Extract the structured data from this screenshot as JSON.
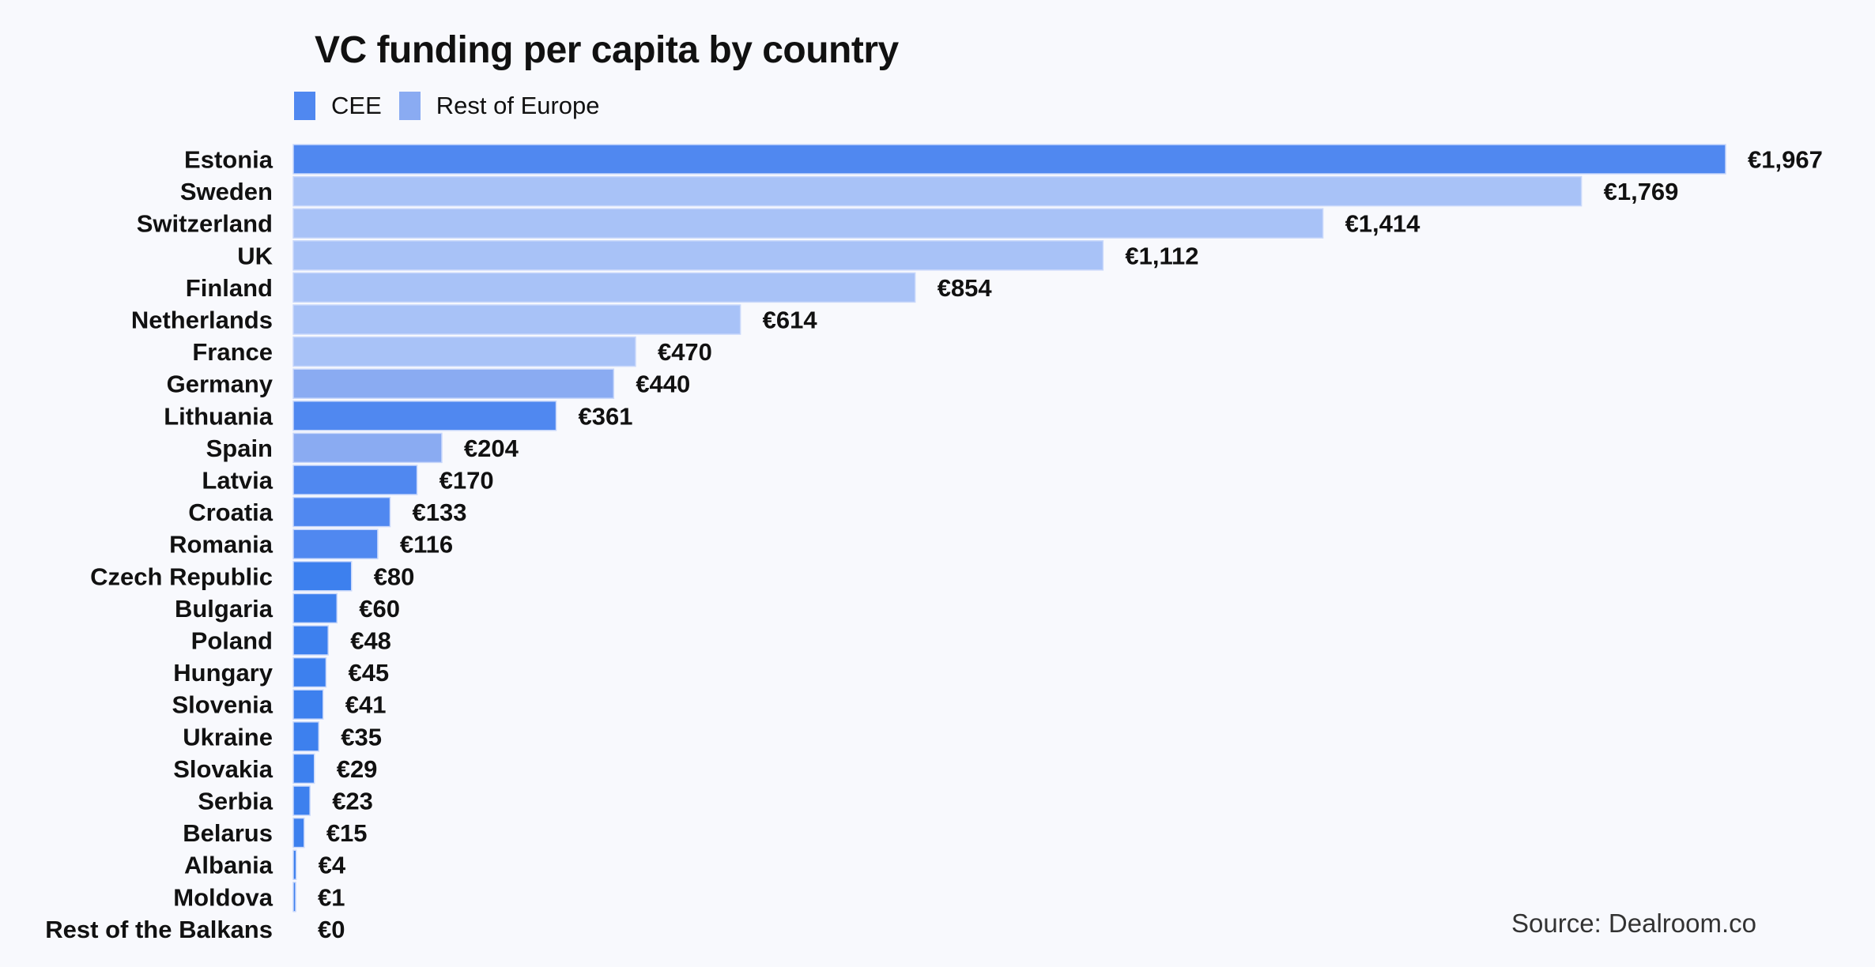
{
  "chart_data": {
    "type": "bar",
    "orientation": "horizontal",
    "title": "VC funding per capita by country",
    "xlabel": "",
    "ylabel": "",
    "xlim": [
      0,
      1967
    ],
    "grid": false,
    "legend": {
      "placement": "top-left",
      "entries": [
        {
          "label": "CEE",
          "color": "#5088f0"
        },
        {
          "label": "Rest of Europe",
          "color": "#8aabf2"
        }
      ]
    },
    "categories": [
      "Estonia",
      "Sweden",
      "Switzerland",
      "UK",
      "Finland",
      "Netherlands",
      "France",
      "Germany",
      "Lithuania",
      "Spain",
      "Latvia",
      "Croatia",
      "Romania",
      "Czech Republic",
      "Bulgaria",
      "Poland",
      "Hungary",
      "Slovenia",
      "Ukraine",
      "Slovakia",
      "Serbia",
      "Belarus",
      "Albania",
      "Moldova",
      "Rest of the Balkans"
    ],
    "values": [
      1967,
      1769,
      1414,
      1112,
      854,
      614,
      470,
      440,
      361,
      204,
      170,
      133,
      116,
      80,
      60,
      48,
      45,
      41,
      35,
      29,
      23,
      15,
      4,
      1,
      0
    ],
    "labels": [
      "€1,967",
      "€1,769",
      "€1,414",
      "€1,112",
      "€854",
      "€614",
      "€470",
      "€440",
      "€361",
      "€204",
      "€170",
      "€133",
      "€116",
      "€80",
      "€60",
      "€48",
      "€45",
      "€41",
      "€35",
      "€29",
      "€23",
      "€15",
      "€4",
      "€1",
      "€0"
    ],
    "groups": [
      "CEE",
      "Rest of Europe",
      "Rest of Europe",
      "Rest of Europe",
      "Rest of Europe",
      "Rest of Europe",
      "Rest of Europe",
      "Rest of Europe",
      "CEE",
      "Rest of Europe",
      "CEE",
      "CEE",
      "CEE",
      "CEE",
      "CEE",
      "CEE",
      "CEE",
      "CEE",
      "CEE",
      "CEE",
      "CEE",
      "CEE",
      "CEE",
      "CEE",
      "CEE"
    ],
    "colors": [
      "#5088f0",
      "#a8c2f7",
      "#a8c2f7",
      "#a8c2f7",
      "#a8c2f7",
      "#a8c2f7",
      "#a8c2f7",
      "#8aabf2",
      "#5088f0",
      "#8aabf2",
      "#5088f0",
      "#5088f0",
      "#5088f0",
      "#3d80ee",
      "#3d80ee",
      "#3d80ee",
      "#3d80ee",
      "#3d80ee",
      "#3d80ee",
      "#3d80ee",
      "#3d80ee",
      "#3d80ee",
      "#3d80ee",
      "#3d80ee",
      "#3d80ee"
    ]
  },
  "source": "Source: Dealroom.co"
}
